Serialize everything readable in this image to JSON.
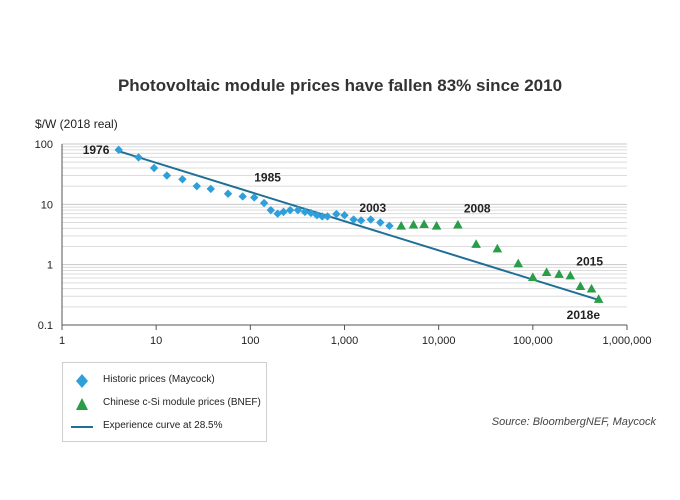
{
  "chart_data": {
    "type": "scatter",
    "title": "Photovoltaic module prices have fallen 83% since 2010",
    "ylabel": "$/W (2018 real)",
    "xlabel": "",
    "x_scale": "log",
    "y_scale": "log",
    "xlim": [
      1,
      1000000
    ],
    "ylim": [
      0.1,
      100
    ],
    "x_ticks": [
      1,
      10,
      100,
      1000,
      10000,
      100000,
      1000000
    ],
    "x_tick_labels": [
      "1",
      "10",
      "100",
      "1,000",
      "10,000",
      "100,000",
      "1,000,000"
    ],
    "y_ticks": [
      0.1,
      1,
      10,
      100
    ],
    "y_tick_labels": [
      "0.1",
      "1",
      "10",
      "100"
    ],
    "grid": "horizontal minor gridlines",
    "legend_position": "bottom-left",
    "series": [
      {
        "name": "Historic prices (Maycock)",
        "marker": "diamond",
        "color": "#2f9fd9",
        "points": [
          [
            4,
            80
          ],
          [
            6.5,
            60
          ],
          [
            9.5,
            40
          ],
          [
            13,
            30
          ],
          [
            19,
            26
          ],
          [
            27,
            20
          ],
          [
            38,
            18
          ],
          [
            58,
            15
          ],
          [
            83,
            13.5
          ],
          [
            110,
            13
          ],
          [
            140,
            10.5
          ],
          [
            165,
            8
          ],
          [
            195,
            7
          ],
          [
            225,
            7.5
          ],
          [
            265,
            8
          ],
          [
            320,
            8
          ],
          [
            380,
            7.5
          ],
          [
            440,
            7.2
          ],
          [
            510,
            6.6
          ],
          [
            580,
            6.3
          ],
          [
            660,
            6.3
          ],
          [
            820,
            6.9
          ],
          [
            1000,
            6.6
          ],
          [
            1250,
            5.6
          ],
          [
            1500,
            5.4
          ],
          [
            1900,
            5.6
          ],
          [
            2400,
            5
          ],
          [
            3000,
            4.4
          ]
        ]
      },
      {
        "name": "Chinese c-Si module prices (BNEF)",
        "marker": "triangle",
        "color": "#2a9d48",
        "points": [
          [
            4000,
            4.4
          ],
          [
            5400,
            4.6
          ],
          [
            7000,
            4.7
          ],
          [
            9500,
            4.4
          ],
          [
            16000,
            4.6
          ],
          [
            25000,
            2.2
          ],
          [
            42000,
            1.85
          ],
          [
            70000,
            1.05
          ],
          [
            100000,
            0.62
          ],
          [
            140000,
            0.75
          ],
          [
            190000,
            0.7
          ],
          [
            250000,
            0.66
          ],
          [
            320000,
            0.44
          ],
          [
            420000,
            0.4
          ],
          [
            500000,
            0.27
          ]
        ]
      },
      {
        "name": "Experience curve at 28.5%",
        "type": "line",
        "color": "#1f6f96",
        "points": [
          [
            4,
            76
          ],
          [
            500000,
            0.26
          ]
        ]
      }
    ],
    "annotations": [
      {
        "text": "1976",
        "x": 4,
        "y": 80
      },
      {
        "text": "1985",
        "x": 110,
        "y": 13
      },
      {
        "text": "2003",
        "x": 3000,
        "y": 4.4
      },
      {
        "text": "2008",
        "x": 16000,
        "y": 4.6
      },
      {
        "text": "2015",
        "x": 250000,
        "y": 0.66
      },
      {
        "text": "2018e",
        "x": 500000,
        "y": 0.27
      }
    ]
  },
  "source": "Source: BloombergNEF, Maycock"
}
